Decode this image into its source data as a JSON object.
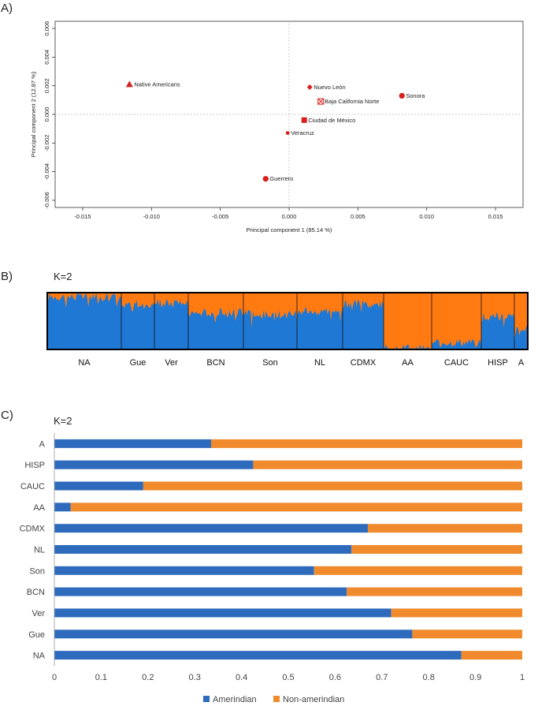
{
  "panels": {
    "a_label": "A)",
    "b_label": "B)",
    "c_label": "C)",
    "b_k": "K=2",
    "c_k": "K=2"
  },
  "colors": {
    "pca_point": "#d71f1f",
    "amerindian": "#2f6bbd",
    "non_amerindian": "#f08a2c",
    "admix_blue": "#1f78d4",
    "admix_orange": "#ff7a10"
  },
  "chart_data": [
    {
      "type": "scatter",
      "xlabel": "Principal component 1 (85.14 %)",
      "ylabel": "Principal component 2 (12.87 %)",
      "xlim": [
        -0.017,
        0.017
      ],
      "ylim": [
        -0.0065,
        0.0065
      ],
      "x_ticks": [
        "-0.015",
        "-0.010",
        "-0.005",
        "0.000",
        "0.005",
        "0.010",
        "0.015"
      ],
      "x_tick_values": [
        -0.015,
        -0.01,
        -0.005,
        0,
        0.005,
        0.01,
        0.015
      ],
      "y_ticks": [
        "-0.006",
        "-0.004",
        "-0.002",
        "0.000",
        "0.002",
        "0.004",
        "0.006"
      ],
      "y_tick_values": [
        -0.006,
        -0.004,
        -0.002,
        0,
        0.002,
        0.004,
        0.006
      ],
      "points": [
        {
          "label": "Native Americans",
          "x": -0.0116,
          "y": 0.0021,
          "marker": "triangle"
        },
        {
          "label": "Nuevo León",
          "x": 0.0015,
          "y": 0.0019,
          "marker": "diamond"
        },
        {
          "label": "Baja California Norte",
          "x": 0.0023,
          "y": 0.0009,
          "marker": "square-open"
        },
        {
          "label": "Sonora",
          "x": 0.0082,
          "y": 0.0013,
          "marker": "circle"
        },
        {
          "label": "Ciudad de México",
          "x": 0.0011,
          "y": -0.0004,
          "marker": "square"
        },
        {
          "label": "Veracruz",
          "x": -0.0001,
          "y": -0.0013,
          "marker": "small-circle"
        },
        {
          "label": "Guerrero",
          "x": -0.0017,
          "y": -0.0045,
          "marker": "circle"
        }
      ],
      "grid": false
    },
    {
      "type": "bar",
      "title": "K=2",
      "stacked": true,
      "categories": [
        "NA",
        "Gue",
        "Ver",
        "BCN",
        "Son",
        "NL",
        "CDMX",
        "AA",
        "CAUC",
        "HISP",
        "A"
      ],
      "series": [
        {
          "values": [
            0.93,
            0.8,
            0.82,
            0.65,
            0.62,
            0.67,
            0.8,
            0.03,
            0.12,
            0.58,
            0.35
          ]
        },
        {
          "values": [
            0.07,
            0.2,
            0.18,
            0.35,
            0.38,
            0.33,
            0.2,
            0.97,
            0.88,
            0.42,
            0.65
          ]
        }
      ],
      "ylim": [
        0,
        1
      ]
    },
    {
      "type": "bar",
      "orientation": "horizontal",
      "stacked": true,
      "title": "K=2",
      "categories": [
        "A",
        "HISP",
        "CAUC",
        "AA",
        "CDMX",
        "NL",
        "Son",
        "BCN",
        "Ver",
        "Gue",
        "NA"
      ],
      "series": [
        {
          "name": "Amerindian",
          "values": [
            0.335,
            0.425,
            0.19,
            0.035,
            0.67,
            0.635,
            0.555,
            0.625,
            0.72,
            0.765,
            0.87
          ]
        },
        {
          "name": "Non-amerindian",
          "values": [
            0.665,
            0.575,
            0.81,
            0.965,
            0.33,
            0.365,
            0.445,
            0.375,
            0.28,
            0.235,
            0.13
          ]
        }
      ],
      "xlim": [
        0,
        1
      ],
      "x_ticks": [
        "0",
        "0.1",
        "0.2",
        "0.3",
        "0.4",
        "0.5",
        "0.6",
        "0.7",
        "0.8",
        "0.9",
        "1"
      ],
      "x_tick_values": [
        0,
        0.1,
        0.2,
        0.3,
        0.4,
        0.5,
        0.6,
        0.7,
        0.8,
        0.9,
        1
      ],
      "legend": "bottom",
      "grid": false
    }
  ]
}
